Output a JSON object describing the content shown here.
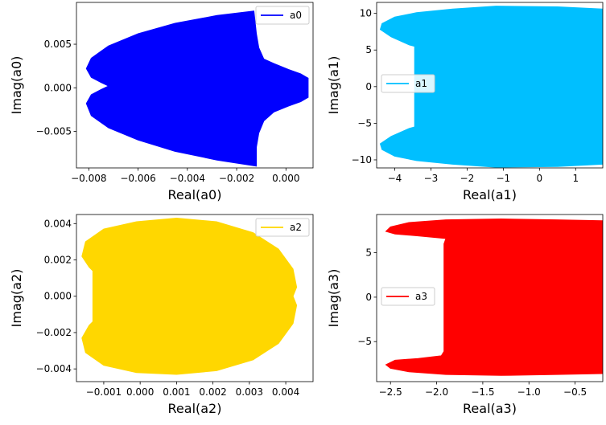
{
  "chart_data": [
    {
      "type": "area",
      "xlabel": "Real(a0)",
      "ylabel": "Imag(a0)",
      "xlim": [
        -0.0085,
        0.0011
      ],
      "ylim": [
        -0.0092,
        0.0098
      ],
      "xticks": [
        {
          "v": -0.008,
          "label": "−0.008"
        },
        {
          "v": -0.006,
          "label": "−0.006"
        },
        {
          "v": -0.004,
          "label": "−0.004"
        },
        {
          "v": -0.002,
          "label": "−0.002"
        },
        {
          "v": 0.0,
          "label": "0.000"
        }
      ],
      "yticks": [
        {
          "v": -0.005,
          "label": "−0.005"
        },
        {
          "v": 0.0,
          "label": "0.000"
        },
        {
          "v": 0.005,
          "label": "0.005"
        }
      ],
      "legend": {
        "label": "a0",
        "position": "top-right"
      },
      "color": "#0000ff",
      "boundary": [
        [
          -0.0013,
          0.0088
        ],
        [
          -0.0028,
          0.0083
        ],
        [
          -0.0045,
          0.0074
        ],
        [
          -0.006,
          0.0062
        ],
        [
          -0.0072,
          0.0048
        ],
        [
          -0.0079,
          0.0034
        ],
        [
          -0.0081,
          0.0022
        ],
        [
          -0.0079,
          0.0012
        ],
        [
          -0.0075,
          0.0006
        ],
        [
          -0.0072,
          0.0002
        ],
        [
          -0.0075,
          -0.0002
        ],
        [
          -0.0079,
          -0.0008
        ],
        [
          -0.0081,
          -0.0018
        ],
        [
          -0.0079,
          -0.0032
        ],
        [
          -0.0072,
          -0.0046
        ],
        [
          -0.006,
          -0.006
        ],
        [
          -0.0045,
          -0.0073
        ],
        [
          -0.0028,
          -0.0083
        ],
        [
          -0.0012,
          -0.009
        ],
        [
          -0.0012,
          -0.0068
        ],
        [
          -0.0011,
          -0.0052
        ],
        [
          -0.0009,
          -0.0038
        ],
        [
          -0.0005,
          -0.0028
        ],
        [
          0.0001,
          -0.0021
        ],
        [
          0.0006,
          -0.0016
        ],
        [
          0.0009,
          -0.0011
        ],
        [
          0.0009,
          0.0011
        ],
        [
          0.0006,
          0.0016
        ],
        [
          0.0001,
          0.0021
        ],
        [
          -0.0005,
          0.0028
        ],
        [
          -0.0009,
          0.0033
        ],
        [
          -0.0011,
          0.0046
        ],
        [
          -0.0012,
          0.0062
        ],
        [
          -0.0013,
          0.0088
        ]
      ]
    },
    {
      "type": "area",
      "xlabel": "Real(a1)",
      "ylabel": "Imag(a1)",
      "xlim": [
        -4.5,
        1.75
      ],
      "ylim": [
        -11.1,
        11.5
      ],
      "xticks": [
        {
          "v": -4,
          "label": "−4"
        },
        {
          "v": -3,
          "label": "−3"
        },
        {
          "v": -2,
          "label": "−2"
        },
        {
          "v": -1,
          "label": "−1"
        },
        {
          "v": 0,
          "label": "0"
        },
        {
          "v": 1,
          "label": "1"
        }
      ],
      "yticks": [
        {
          "v": -10,
          "label": "−10"
        },
        {
          "v": -5,
          "label": "−5"
        },
        {
          "v": 0,
          "label": "0"
        },
        {
          "v": 5,
          "label": "5"
        },
        {
          "v": 10,
          "label": "10"
        }
      ],
      "legend": {
        "label": "a1",
        "position": "center-left"
      },
      "color": "#00bfff",
      "boundary": [
        [
          1.75,
          10.6
        ],
        [
          0.5,
          10.9
        ],
        [
          -1.2,
          11.0
        ],
        [
          -2.4,
          10.6
        ],
        [
          -3.4,
          10.1
        ],
        [
          -4.0,
          9.5
        ],
        [
          -4.35,
          8.6
        ],
        [
          -4.4,
          7.8
        ],
        [
          -4.1,
          6.8
        ],
        [
          -3.6,
          5.7
        ],
        [
          -3.45,
          5.5
        ],
        [
          -3.45,
          -5.5
        ],
        [
          -3.6,
          -5.7
        ],
        [
          -4.1,
          -6.8
        ],
        [
          -4.4,
          -7.8
        ],
        [
          -4.35,
          -8.6
        ],
        [
          -4.0,
          -9.5
        ],
        [
          -3.4,
          -10.1
        ],
        [
          -2.4,
          -10.6
        ],
        [
          -1.2,
          -11.0
        ],
        [
          0.5,
          -10.9
        ],
        [
          1.75,
          -10.6
        ]
      ]
    },
    {
      "type": "area",
      "xlabel": "Real(a2)",
      "ylabel": "Imag(a2)",
      "xlim": [
        -0.00175,
        0.00475
      ],
      "ylim": [
        -0.0047,
        0.0045
      ],
      "xticks": [
        {
          "v": -0.001,
          "label": "−0.001"
        },
        {
          "v": 0.0,
          "label": "0.000"
        },
        {
          "v": 0.001,
          "label": "0.001"
        },
        {
          "v": 0.002,
          "label": "0.002"
        },
        {
          "v": 0.003,
          "label": "0.003"
        },
        {
          "v": 0.004,
          "label": "0.004"
        }
      ],
      "yticks": [
        {
          "v": -0.004,
          "label": "−0.004"
        },
        {
          "v": -0.002,
          "label": "−0.002"
        },
        {
          "v": 0.0,
          "label": "0.000"
        },
        {
          "v": 0.002,
          "label": "0.002"
        },
        {
          "v": 0.004,
          "label": "0.004"
        }
      ],
      "legend": {
        "label": "a2",
        "position": "top-right"
      },
      "color": "#ffd700",
      "boundary": [
        [
          0.001,
          0.0043
        ],
        [
          0.0021,
          0.0041
        ],
        [
          0.0031,
          0.0035
        ],
        [
          0.0038,
          0.0026
        ],
        [
          0.0042,
          0.0015
        ],
        [
          0.0043,
          0.0005
        ],
        [
          0.0042,
          0.0
        ],
        [
          0.0043,
          -0.0005
        ],
        [
          0.0042,
          -0.0015
        ],
        [
          0.0038,
          -0.0026
        ],
        [
          0.0031,
          -0.0035
        ],
        [
          0.0021,
          -0.0041
        ],
        [
          0.001,
          -0.0043
        ],
        [
          -0.0001,
          -0.0042
        ],
        [
          -0.001,
          -0.0038
        ],
        [
          -0.0015,
          -0.0031
        ],
        [
          -0.0016,
          -0.0023
        ],
        [
          -0.0014,
          -0.0016
        ],
        [
          -0.0013,
          -0.0014
        ],
        [
          -0.0013,
          0.0014
        ],
        [
          -0.0014,
          0.0016
        ],
        [
          -0.0016,
          0.0022
        ],
        [
          -0.0015,
          0.003
        ],
        [
          -0.001,
          0.0037
        ],
        [
          -0.0001,
          0.0041
        ],
        [
          0.001,
          0.0043
        ]
      ]
    },
    {
      "type": "area",
      "xlabel": "Real(a3)",
      "ylabel": "Imag(a3)",
      "xlim": [
        -2.65,
        -0.2
      ],
      "ylim": [
        -9.5,
        9.3
      ],
      "xticks": [
        {
          "v": -2.5,
          "label": "−2.5"
        },
        {
          "v": -2.0,
          "label": "−2.0"
        },
        {
          "v": -1.5,
          "label": "−1.5"
        },
        {
          "v": -1.0,
          "label": "−1.0"
        },
        {
          "v": -0.5,
          "label": "−0.5"
        }
      ],
      "yticks": [
        {
          "v": -5,
          "label": "−5"
        },
        {
          "v": 0,
          "label": "0"
        },
        {
          "v": 5,
          "label": "5"
        }
      ],
      "legend": {
        "label": "a3",
        "position": "center-left"
      },
      "color": "#ff0000",
      "boundary": [
        [
          -0.2,
          8.6
        ],
        [
          -0.7,
          8.7
        ],
        [
          -1.3,
          8.8
        ],
        [
          -1.9,
          8.7
        ],
        [
          -2.3,
          8.4
        ],
        [
          -2.5,
          7.9
        ],
        [
          -2.55,
          7.4
        ],
        [
          -2.45,
          7.1
        ],
        [
          -2.2,
          6.9
        ],
        [
          -1.9,
          6.6
        ],
        [
          -1.92,
          6.0
        ],
        [
          -1.92,
          -6.1
        ],
        [
          -1.95,
          -6.6
        ],
        [
          -2.2,
          -6.9
        ],
        [
          -2.45,
          -7.1
        ],
        [
          -2.55,
          -7.6
        ],
        [
          -2.5,
          -8.0
        ],
        [
          -2.3,
          -8.4
        ],
        [
          -1.9,
          -8.7
        ],
        [
          -1.3,
          -8.8
        ],
        [
          -0.7,
          -8.7
        ],
        [
          -0.2,
          -8.6
        ]
      ]
    }
  ]
}
